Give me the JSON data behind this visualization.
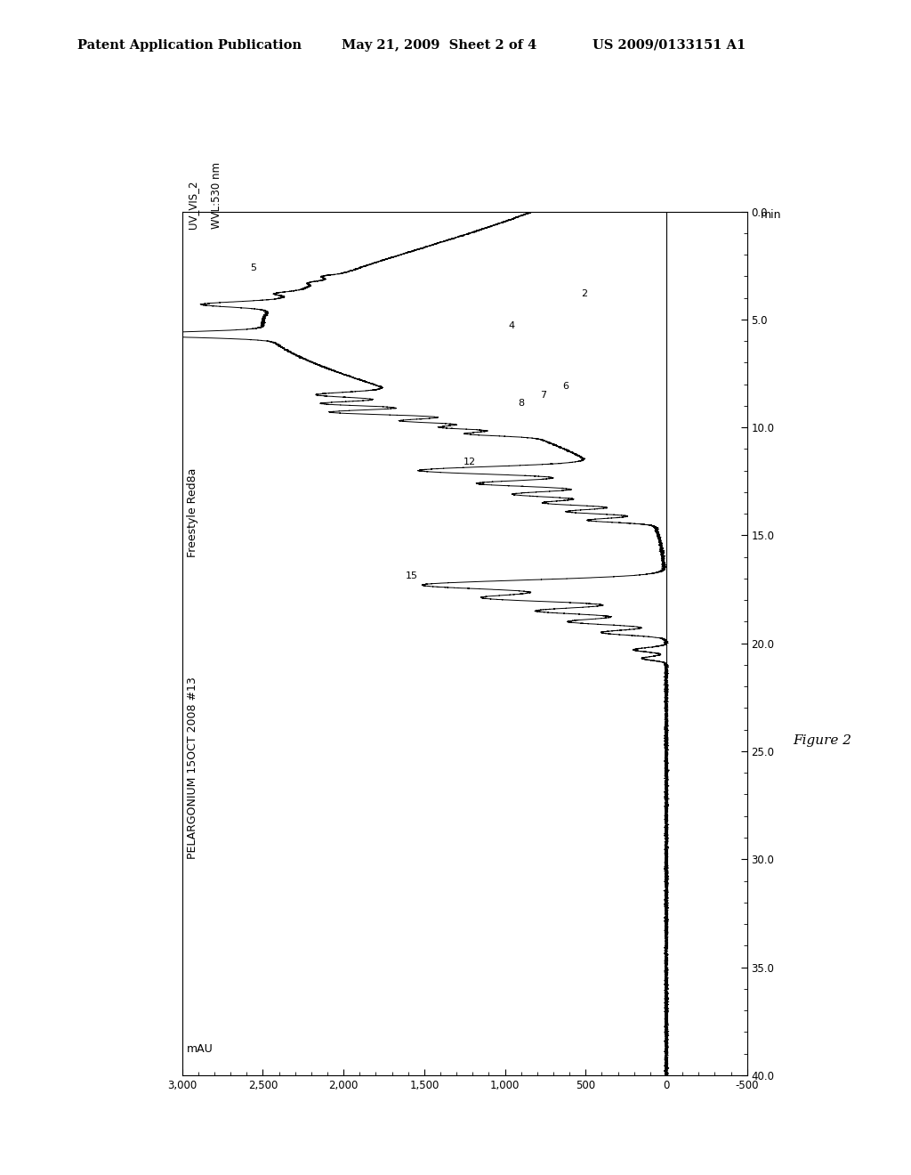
{
  "header_left": "Patent Application Publication",
  "header_mid": "May 21, 2009  Sheet 2 of 4",
  "header_right": "US 2009/0133151 A1",
  "figure_label": "Figure 2",
  "ylabel_top": "UV_VIS_2",
  "ylabel_mid": "WVL:530 nm",
  "sample_label": "Freestyle Red8a",
  "sample_label2": "PELARGONIUM 15OCT 2008 #13",
  "mau_label": "mAU",
  "min_label": "min",
  "mau_ticks": [
    -500,
    0,
    500,
    1000,
    1500,
    2000,
    2500,
    3000
  ],
  "mau_tick_labels": [
    "-500",
    "0",
    "500",
    "1,000",
    "1,500",
    "2,000",
    "2,500",
    "3,000"
  ],
  "time_ticks": [
    0.0,
    5.0,
    10.0,
    15.0,
    20.0,
    25.0,
    30.0,
    35.0,
    40.0
  ],
  "bg_color": "#ffffff",
  "line_color": "#000000"
}
